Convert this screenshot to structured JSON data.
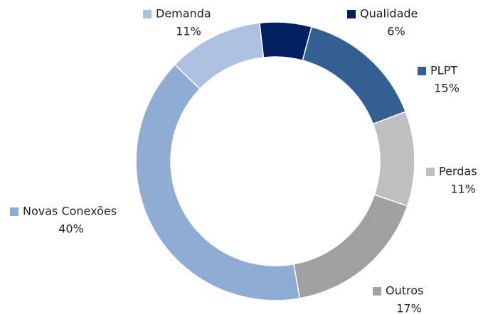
{
  "chart_data": {
    "type": "donut",
    "categories": [
      "Qualidade",
      "PLPT",
      "Perdas",
      "Outros",
      "Novas Conexões",
      "Demanda"
    ],
    "values": [
      6,
      15,
      11,
      17,
      40,
      11
    ],
    "value_labels": [
      "6%",
      "15%",
      "11%",
      "17%",
      "40%",
      "11%"
    ],
    "colors": [
      "#002060",
      "#335f93",
      "#bfbfbf",
      "#a0a0a0",
      "#8eacd4",
      "#adc0e0"
    ]
  }
}
